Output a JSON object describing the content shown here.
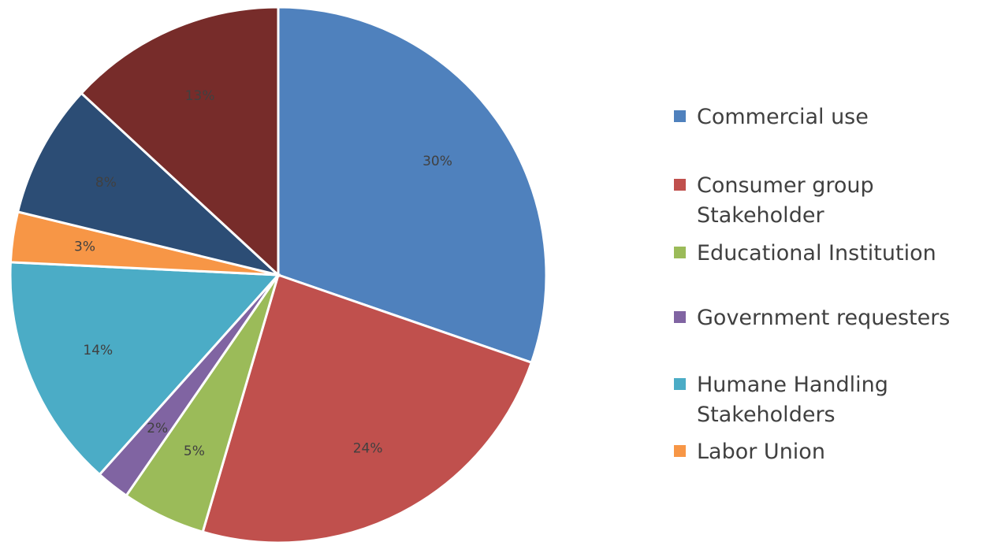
{
  "chart_data": {
    "type": "pie",
    "title": "",
    "start_angle_deg": 0,
    "direction": "clockwise",
    "slices": [
      {
        "label": "Commercial use",
        "value": 30,
        "value_label": "30%",
        "color": "#4F81BD"
      },
      {
        "label": "Consumer group Stakeholder",
        "value": 24,
        "value_label": "24%",
        "color": "#C0504D"
      },
      {
        "label": "Educational Institution",
        "value": 5,
        "value_label": "5%",
        "color": "#9BBB59"
      },
      {
        "label": "Government requesters",
        "value": 2,
        "value_label": "2%",
        "color": "#8064A2"
      },
      {
        "label": "Humane Handling Stakeholders",
        "value": 14,
        "value_label": "14%",
        "color": "#4BACC6"
      },
      {
        "label": "Labor Union",
        "value": 3,
        "value_label": "3%",
        "color": "#F79646"
      },
      {
        "label": "",
        "value": 8,
        "value_label": "8%",
        "color": "#2C4D75"
      },
      {
        "label": "",
        "value": 13,
        "value_label": "13%",
        "color": "#772C2A"
      }
    ],
    "legend": {
      "position": "right",
      "items": [
        {
          "label": "Commercial use",
          "color": "#4F81BD"
        },
        {
          "label": "Consumer group Stakeholder",
          "color": "#C0504D"
        },
        {
          "label": "Educational Institution",
          "color": "#9BBB59"
        },
        {
          "label": "Government requesters",
          "color": "#8064A2"
        },
        {
          "label": "Humane Handling Stakeholders",
          "color": "#4BACC6"
        },
        {
          "label": "Labor Union",
          "color": "#F79646"
        }
      ]
    }
  }
}
